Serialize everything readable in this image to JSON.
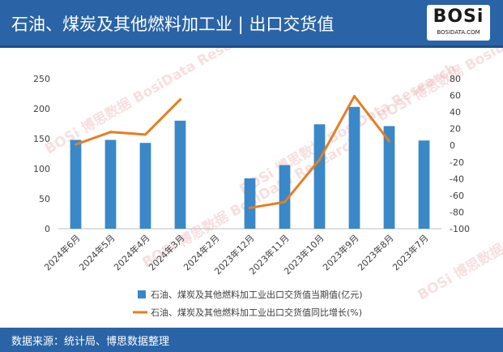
{
  "header": {
    "title": "石油、煤炭及其他燃料加工业 | 出口交货值"
  },
  "logo": {
    "text": "BOSi",
    "subtext": "BOSIDATA.COM"
  },
  "footer": {
    "source": "数据来源：统计局、博思数据整理"
  },
  "watermark": {
    "text": "BOSi 博思数据 BosiData Research"
  },
  "chart_data": {
    "type": "bar+line",
    "categories": [
      "2024年6月",
      "2024年5月",
      "2024年4月",
      "2024年3月",
      "2024年2月",
      "2023年12月",
      "2023年11月",
      "2023年10月",
      "2023年9月",
      "2023年8月",
      "2023年7月"
    ],
    "series": [
      {
        "name": "石油、煤炭及其他燃料加工业出口交货值当期值(亿元)",
        "type": "bar",
        "axis": "left",
        "color": "#3a88c8",
        "values": [
          148,
          148,
          143,
          180,
          null,
          84,
          106,
          174,
          203,
          171,
          147
        ]
      },
      {
        "name": "石油、煤炭及其他燃料加工业出口交货值同比增长(%)",
        "type": "line",
        "axis": "right",
        "color": "#e67e22",
        "values": [
          1,
          16,
          13,
          55,
          null,
          -75,
          -68,
          -17,
          59,
          5,
          null
        ]
      }
    ],
    "left_axis": {
      "min": 0,
      "max": 250,
      "ticks": [
        0,
        50,
        100,
        150,
        200,
        250
      ]
    },
    "right_axis": {
      "min": -100,
      "max": 80,
      "ticks": [
        -100,
        -80,
        -60,
        -40,
        -20,
        0,
        20,
        40,
        60,
        80
      ]
    },
    "legend_position": "bottom"
  }
}
